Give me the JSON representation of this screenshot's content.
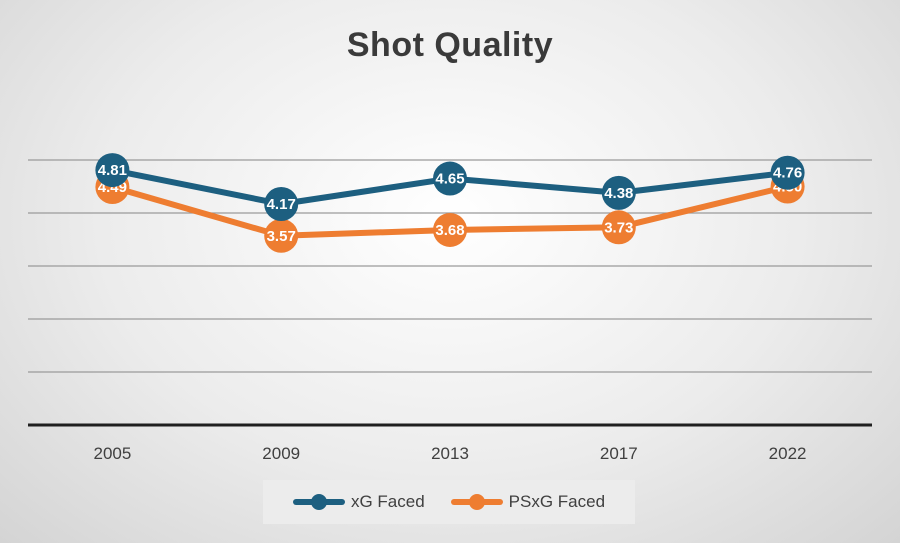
{
  "chart_data": {
    "type": "line",
    "title": "Shot Quality",
    "xlabel": "",
    "ylabel": "",
    "categories": [
      "2005",
      "2009",
      "2013",
      "2017",
      "2022"
    ],
    "ylim": [
      0,
      5
    ],
    "grid": true,
    "legend_position": "bottom",
    "series": [
      {
        "name": "xG Faced",
        "color": "#1d5f80",
        "values": [
          4.81,
          4.17,
          4.65,
          4.38,
          4.76
        ],
        "labels": [
          "4.81",
          "4.17",
          "4.65",
          "4.38",
          "4.76"
        ]
      },
      {
        "name": "PSxG Faced",
        "color": "#ee7d31",
        "values": [
          4.49,
          3.57,
          3.68,
          3.73,
          4.5
        ],
        "labels": [
          "4.49",
          "3.57",
          "3.68",
          "3.73",
          "4.50"
        ]
      }
    ]
  }
}
